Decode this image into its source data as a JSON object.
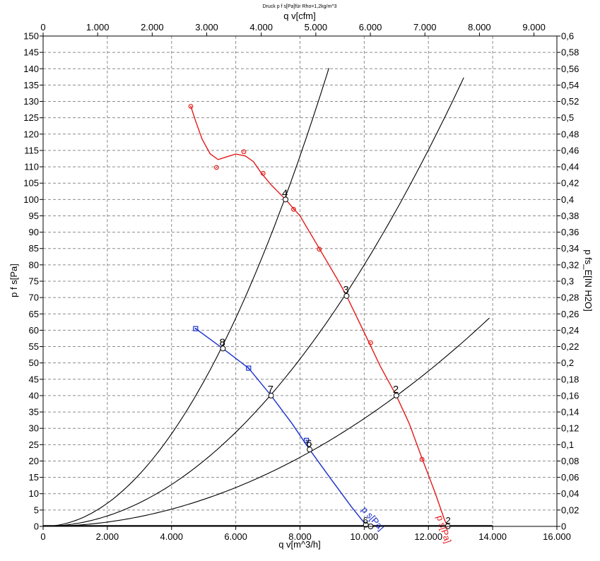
{
  "chart_data": {
    "type": "line",
    "title": "Druck p f s[Pa]für Rho=1,2kg/m^3",
    "xlabel": "q v[m^3/h]",
    "x2label": "q v[cfm]",
    "ylabel": "p f s[Pa]",
    "y2label": "p fs_E[IN H2O]",
    "xlim": [
      0,
      16000
    ],
    "x2lim": [
      0,
      9420
    ],
    "ylim": [
      0,
      150
    ],
    "y2lim": [
      0,
      0.6
    ],
    "grid": true,
    "x_ticks": [
      {
        "v": 0,
        "t": "0"
      },
      {
        "v": 2000,
        "t": "2.000"
      },
      {
        "v": 4000,
        "t": "4.000"
      },
      {
        "v": 6000,
        "t": "6.000"
      },
      {
        "v": 8000,
        "t": "8.000"
      },
      {
        "v": 10000,
        "t": "10.000"
      },
      {
        "v": 12000,
        "t": "12.000"
      },
      {
        "v": 14000,
        "t": "14.000"
      },
      {
        "v": 16000,
        "t": "16.000"
      }
    ],
    "x2_ticks": [
      {
        "v": 0,
        "t": "0"
      },
      {
        "v": 1000,
        "t": "1.000"
      },
      {
        "v": 2000,
        "t": "2.000"
      },
      {
        "v": 3000,
        "t": "3.000"
      },
      {
        "v": 4000,
        "t": "4.000"
      },
      {
        "v": 5000,
        "t": "5.000"
      },
      {
        "v": 6000,
        "t": "6.000"
      },
      {
        "v": 7000,
        "t": "7.000"
      },
      {
        "v": 8000,
        "t": "8.000"
      },
      {
        "v": 9000,
        "t": "9.000"
      }
    ],
    "y_ticks": [
      {
        "v": 0,
        "t": "0"
      },
      {
        "v": 5,
        "t": "5"
      },
      {
        "v": 10,
        "t": "10"
      },
      {
        "v": 15,
        "t": "15"
      },
      {
        "v": 20,
        "t": "20"
      },
      {
        "v": 25,
        "t": "25"
      },
      {
        "v": 30,
        "t": "30"
      },
      {
        "v": 35,
        "t": "35"
      },
      {
        "v": 40,
        "t": "40"
      },
      {
        "v": 45,
        "t": "45"
      },
      {
        "v": 50,
        "t": "50"
      },
      {
        "v": 55,
        "t": "55"
      },
      {
        "v": 60,
        "t": "60"
      },
      {
        "v": 65,
        "t": "65"
      },
      {
        "v": 70,
        "t": "70"
      },
      {
        "v": 75,
        "t": "75"
      },
      {
        "v": 80,
        "t": "80"
      },
      {
        "v": 85,
        "t": "85"
      },
      {
        "v": 90,
        "t": "90"
      },
      {
        "v": 95,
        "t": "95"
      },
      {
        "v": 100,
        "t": "100"
      },
      {
        "v": 105,
        "t": "105"
      },
      {
        "v": 110,
        "t": "110"
      },
      {
        "v": 115,
        "t": "115"
      },
      {
        "v": 120,
        "t": "120"
      },
      {
        "v": 125,
        "t": "125"
      },
      {
        "v": 130,
        "t": "130"
      },
      {
        "v": 135,
        "t": "135"
      },
      {
        "v": 140,
        "t": "140"
      },
      {
        "v": 145,
        "t": "145"
      },
      {
        "v": 150,
        "t": "150"
      }
    ],
    "y2_ticks": [
      {
        "v": 0,
        "t": "0"
      },
      {
        "v": 0.02,
        "t": "0,02"
      },
      {
        "v": 0.04,
        "t": "0,04"
      },
      {
        "v": 0.06,
        "t": "0,06"
      },
      {
        "v": 0.08,
        "t": "0,08"
      },
      {
        "v": 0.1,
        "t": "0,1"
      },
      {
        "v": 0.12,
        "t": "0,12"
      },
      {
        "v": 0.14,
        "t": "0,14"
      },
      {
        "v": 0.16,
        "t": "0,16"
      },
      {
        "v": 0.18,
        "t": "0,18"
      },
      {
        "v": 0.2,
        "t": "0,2"
      },
      {
        "v": 0.22,
        "t": "0,22"
      },
      {
        "v": 0.24,
        "t": "0,24"
      },
      {
        "v": 0.26,
        "t": "0,26"
      },
      {
        "v": 0.28,
        "t": "0,28"
      },
      {
        "v": 0.3,
        "t": "0,3"
      },
      {
        "v": 0.32,
        "t": "0,32"
      },
      {
        "v": 0.34,
        "t": "0,34"
      },
      {
        "v": 0.36,
        "t": "0,36"
      },
      {
        "v": 0.38,
        "t": "0,38"
      },
      {
        "v": 0.4,
        "t": "0,4"
      },
      {
        "v": 0.42,
        "t": "0,42"
      },
      {
        "v": 0.44,
        "t": "0,44"
      },
      {
        "v": 0.46,
        "t": "0,46"
      },
      {
        "v": 0.48,
        "t": "0,48"
      },
      {
        "v": 0.5,
        "t": "0,5"
      },
      {
        "v": 0.52,
        "t": "0,52"
      },
      {
        "v": 0.54,
        "t": "0,54"
      },
      {
        "v": 0.56,
        "t": "0,56"
      },
      {
        "v": 0.58,
        "t": "0,58"
      },
      {
        "v": 0.6,
        "t": "0,6"
      }
    ],
    "series": [
      {
        "name": "p s[Pa]",
        "color": "#e31a1a",
        "marker": "circle",
        "line": [
          [
            4600,
            128.5
          ],
          [
            4750,
            124
          ],
          [
            4950,
            118.5
          ],
          [
            5200,
            114
          ],
          [
            5450,
            112.2
          ],
          [
            5700,
            113
          ],
          [
            6000,
            113.9
          ],
          [
            6300,
            113.3
          ],
          [
            6550,
            111.6
          ],
          [
            6800,
            108
          ],
          [
            7100,
            104.5
          ],
          [
            7550,
            100
          ],
          [
            8000,
            95
          ],
          [
            8600,
            85
          ],
          [
            9200,
            75
          ],
          [
            9450,
            70.5
          ],
          [
            10000,
            59.3
          ],
          [
            10500,
            49
          ],
          [
            11000,
            40
          ],
          [
            11400,
            31.5
          ],
          [
            11800,
            20.8
          ],
          [
            12200,
            10.5
          ],
          [
            12500,
            2
          ],
          [
            12600,
            0
          ]
        ],
        "markers": [
          [
            4600,
            128.5
          ],
          [
            5400,
            109.8
          ],
          [
            6250,
            114.6
          ],
          [
            6850,
            108
          ],
          [
            7800,
            97
          ],
          [
            8600,
            84.8
          ],
          [
            10200,
            56.2
          ],
          [
            11800,
            20.5
          ]
        ],
        "end_points": [
          [
            12600,
            0
          ]
        ]
      },
      {
        "name": "p s[Pa]",
        "color": "#1a2fcc",
        "marker": "square",
        "line": [
          [
            4750,
            60.5
          ],
          [
            5600,
            54.4
          ],
          [
            6400,
            48.4
          ],
          [
            7100,
            40
          ],
          [
            7750,
            31.5
          ],
          [
            8300,
            23.5
          ],
          [
            9000,
            14
          ],
          [
            9600,
            6
          ],
          [
            10050,
            0.5
          ],
          [
            10300,
            0
          ]
        ],
        "markers": [
          [
            4750,
            60.5
          ],
          [
            6400,
            48.4
          ],
          [
            8200,
            26.3
          ]
        ],
        "end_points": [
          [
            10050,
            0.5
          ],
          [
            10200,
            0
          ]
        ]
      }
    ],
    "system_curves": [
      {
        "k_x1000": 1.77,
        "x_max": 8900
      },
      {
        "k_x1000": 0.8,
        "x_max": 13100
      },
      {
        "k_x1000": 0.33,
        "x_max": 13900
      }
    ],
    "operating_points": [
      {
        "label": "2",
        "x": 11000,
        "y": 40
      },
      {
        "label": "3",
        "x": 9450,
        "y": 70.5
      },
      {
        "label": "4",
        "x": 7550,
        "y": 100
      },
      {
        "label": "6",
        "x": 8300,
        "y": 23.5
      },
      {
        "label": "7",
        "x": 7100,
        "y": 40
      },
      {
        "label": "8",
        "x": 5600,
        "y": 54.4
      }
    ],
    "end_labels": [
      {
        "label": "p s[Pa]",
        "color": "#e31a1a"
      },
      {
        "label": "p s[Pa]",
        "color": "#1a2fcc"
      }
    ]
  }
}
